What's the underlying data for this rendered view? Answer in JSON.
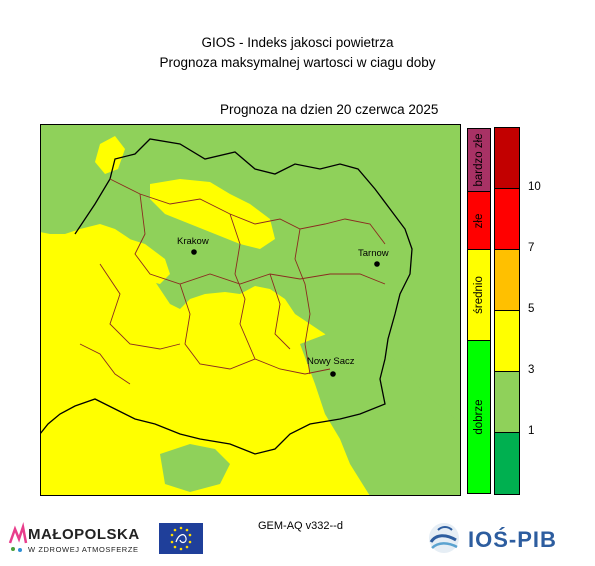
{
  "header": {
    "title_line1": "GIOS - Indeks jakosci powietrza",
    "title_line2": "Prognoza maksymalnej wartosci w ciagu doby",
    "forecast_label": "Prognoza na dzien  20 czerwca 2025"
  },
  "map": {
    "cities": [
      {
        "name": "Krakow"
      },
      {
        "name": "Tarnow"
      },
      {
        "name": "Nowy Sacz"
      }
    ],
    "colors": {
      "good_area": "#8fd15a",
      "moderate_area": "#ffff00",
      "voivodeship_border": "#000000",
      "county_border": "#8b2b20"
    }
  },
  "legend": {
    "categories": [
      {
        "label": "bardzo złe",
        "color": "#a83265"
      },
      {
        "label": "złe",
        "color": "#ff0000"
      },
      {
        "label": "średnio",
        "color": "#ffff00"
      },
      {
        "label": "dobrze",
        "color": "#00ff00"
      }
    ],
    "scale": [
      {
        "color": "#c20000"
      },
      {
        "color": "#ff0000"
      },
      {
        "color": "#ffc000"
      },
      {
        "color": "#ffff00"
      },
      {
        "color": "#8fd15a"
      },
      {
        "color": "#00b050"
      }
    ],
    "scale_labels": [
      "10",
      "7",
      "5",
      "3",
      "1"
    ]
  },
  "footer": {
    "model_label": "GEM-AQ v332--d",
    "malopolska_title": "MAŁOPOLSKA",
    "malopolska_sub": "W ZDROWEJ ATMOSFERZE",
    "ios_label": "IOŚ-PIB"
  }
}
